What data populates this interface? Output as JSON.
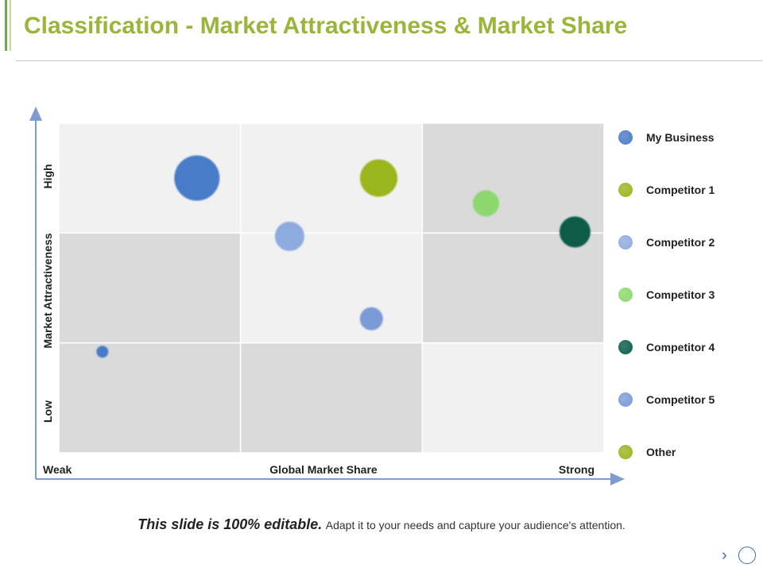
{
  "slide": {
    "title": "Classification - Market Attractiveness & Market Share",
    "footer_strong": "This slide is 100% editable.",
    "footer_rest": "Adapt it to your needs and capture your audience's attention.",
    "nav_next_glyph": "›"
  },
  "chart_data": {
    "type": "scatter",
    "title": "",
    "xlabel": "Global Market Share",
    "ylabel": "Market Attractiveness",
    "x_tick_labels": [
      "Weak",
      "Strong"
    ],
    "y_tick_labels": [
      "Low",
      "High"
    ],
    "xlim": [
      0,
      3
    ],
    "ylim": [
      0,
      3
    ],
    "grid": true,
    "legend_position": "right",
    "quadrant_shading": [
      [
        "light",
        "light",
        "dark"
      ],
      [
        "dark",
        "light",
        "dark"
      ],
      [
        "dark",
        "dark",
        "light"
      ]
    ],
    "quadrant_colors": {
      "light": "#f1f1f1",
      "dark": "#dadada"
    },
    "series": [
      {
        "name": "My Business",
        "color": "#4a7bc8",
        "points": [
          {
            "x": 0.76,
            "y": 2.5,
            "size": 28
          },
          {
            "x": 0.24,
            "y": 0.92,
            "size": 7
          }
        ]
      },
      {
        "name": "Competitor 1",
        "color": "#9bb51e",
        "points": [
          {
            "x": 1.76,
            "y": 2.5,
            "size": 23
          }
        ]
      },
      {
        "name": "Competitor 2",
        "color": "#8eabe0",
        "points": [
          {
            "x": 1.27,
            "y": 1.97,
            "size": 18
          }
        ]
      },
      {
        "name": "Competitor 3",
        "color": "#8dd86e",
        "points": [
          {
            "x": 2.35,
            "y": 2.27,
            "size": 16
          }
        ]
      },
      {
        "name": "Competitor 4",
        "color": "#0b5c4a",
        "points": [
          {
            "x": 2.84,
            "y": 2.01,
            "size": 19
          }
        ]
      },
      {
        "name": "Competitor 5",
        "color": "#7a9ad8",
        "points": [
          {
            "x": 1.72,
            "y": 1.22,
            "size": 14
          }
        ]
      },
      {
        "name": "Other",
        "color": "#9bb51e",
        "points": []
      }
    ]
  }
}
